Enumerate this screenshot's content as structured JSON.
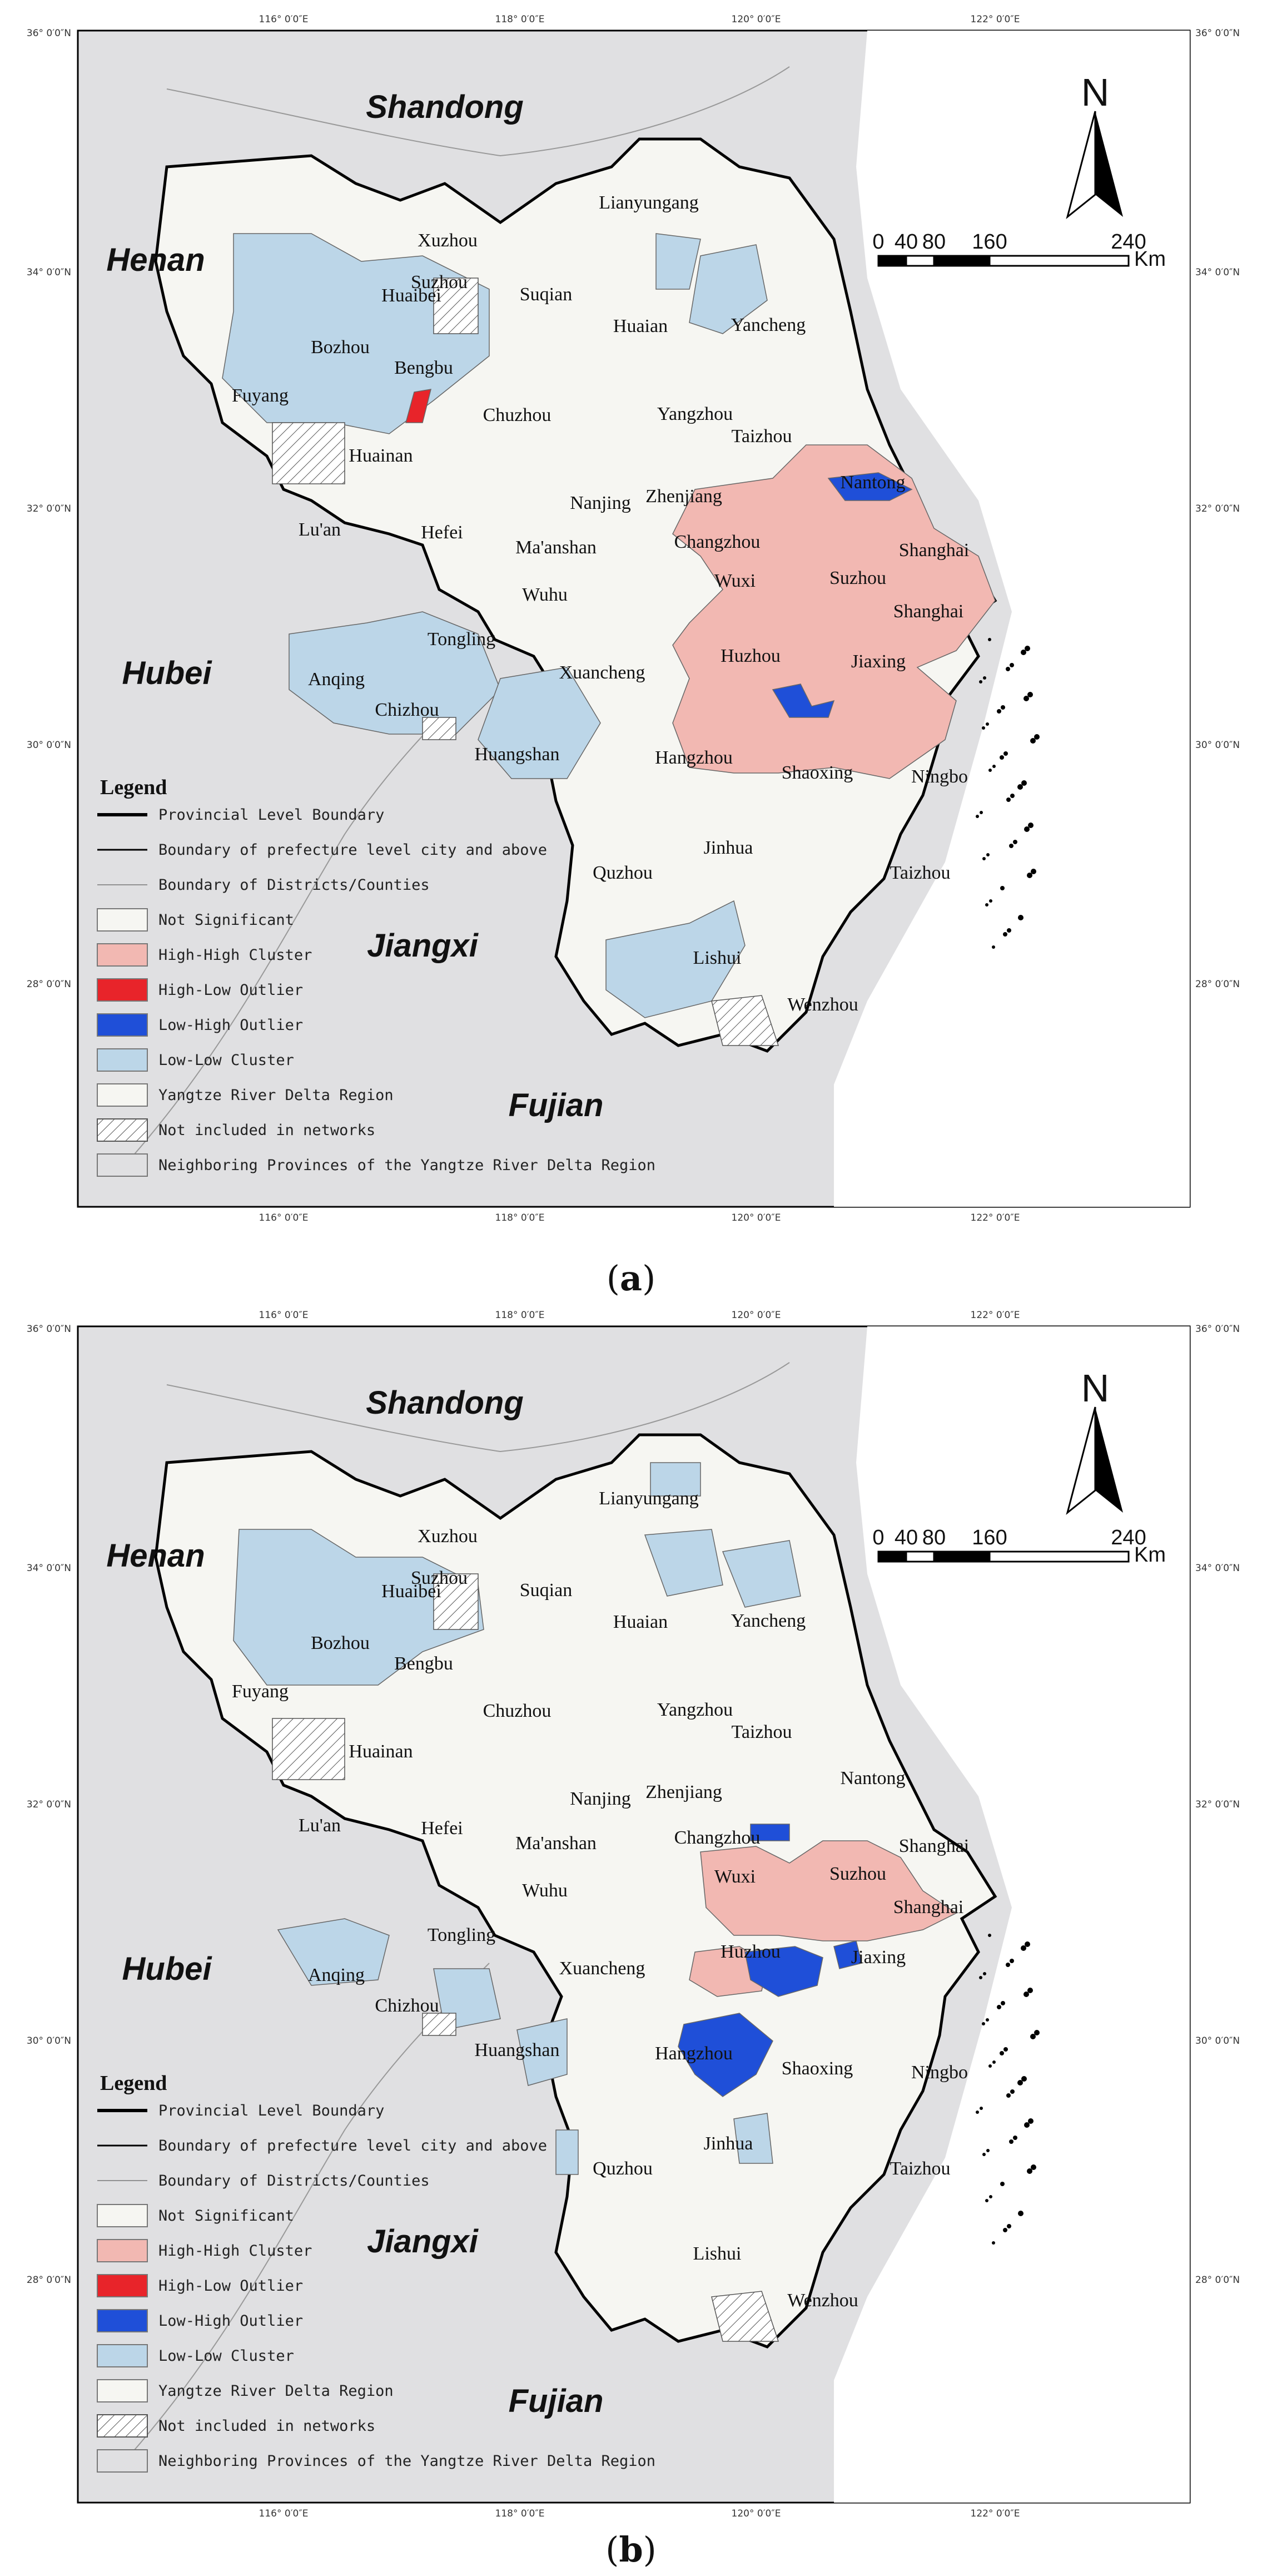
{
  "panels": [
    {
      "id": "a",
      "caption": "a",
      "provinces": [
        "Shandong",
        "Henan",
        "Hubei",
        "Jiangxi",
        "Fujian"
      ],
      "lon_ticks": [
        "116° 0′0″E",
        "118° 0′0″E",
        "120° 0′0″E",
        "122° 0′0″E"
      ],
      "lat_ticks": [
        "36° 0′0″N",
        "34° 0′0″N",
        "32° 0′0″N",
        "30° 0′0″N",
        "28° 0′0″N"
      ],
      "north": "N",
      "scale_labels": [
        "0",
        "40",
        "80",
        "160",
        "240"
      ],
      "scale_unit": "Km",
      "cities": [
        "Xuzhou",
        "Lianyungang",
        "Suzhou",
        "Huaibei",
        "Suqian",
        "Bozhou",
        "Huaian",
        "Yancheng",
        "Bengbu",
        "Fuyang",
        "Chuzhou",
        "Yangzhou",
        "Taizhou",
        "Huainan",
        "Nantong",
        "Zhenjiang",
        "Nanjing",
        "Lu'an",
        "Hefei",
        "Ma'anshan",
        "Changzhou",
        "Shanghai",
        "Wuxi",
        "Suzhou",
        "Shanghai",
        "Wuhu",
        "Tongling",
        "Anqing",
        "Xuancheng",
        "Huzhou",
        "Jiaxing",
        "Chizhou",
        "Huangshan",
        "Hangzhou",
        "Shaoxing",
        "Ningbo",
        "Quzhou",
        "Jinhua",
        "Taizhou",
        "Lishui",
        "Wenzhou"
      ],
      "legend": {
        "title": "Legend",
        "items": [
          "Provincial Level Boundary",
          "Boundary of prefecture level city and above",
          "Boundary of Districts/Counties",
          "Not Significant",
          "High-High Cluster",
          "High-Low Outlier",
          "Low-High Outlier",
          "Low-Low Cluster",
          "Yangtze River Delta Region",
          "Not included in networks",
          "Neighboring Provinces of the Yangtze River Delta Region"
        ]
      }
    },
    {
      "id": "b",
      "caption": "b",
      "provinces": [
        "Shandong",
        "Henan",
        "Hubei",
        "Jiangxi",
        "Fujian"
      ],
      "lon_ticks": [
        "116° 0′0″E",
        "118° 0′0″E",
        "120° 0′0″E",
        "122° 0′0″E"
      ],
      "lat_ticks": [
        "36° 0′0″N",
        "34° 0′0″N",
        "32° 0′0″N",
        "30° 0′0″N",
        "28° 0′0″N"
      ],
      "north": "N",
      "scale_labels": [
        "0",
        "40",
        "80",
        "160",
        "240"
      ],
      "scale_unit": "Km",
      "cities": [
        "Xuzhou",
        "Lianyungang",
        "Suzhou",
        "Huaibei",
        "Suqian",
        "Bozhou",
        "Huaian",
        "Yancheng",
        "Bengbu",
        "Fuyang",
        "Chuzhou",
        "Yangzhou",
        "Taizhou",
        "Huainan",
        "Nantong",
        "Zhenjiang",
        "Nanjing",
        "Lu'an",
        "Hefei",
        "Ma'anshan",
        "Changzhou",
        "Shanghai",
        "Wuxi",
        "Suzhou",
        "Shanghai",
        "Wuhu",
        "Tongling",
        "Anqing",
        "Xuancheng",
        "Huzhou",
        "Jiaxing",
        "Chizhou",
        "Huangshan",
        "Hangzhou",
        "Shaoxing",
        "Ningbo",
        "Quzhou",
        "Jinhua",
        "Taizhou",
        "Lishui",
        "Wenzhou"
      ],
      "legend": {
        "title": "Legend",
        "items": [
          "Provincial Level Boundary",
          "Boundary of prefecture level city and above",
          "Boundary of Districts/Counties",
          "Not Significant",
          "High-High Cluster",
          "High-Low Outlier",
          "Low-High Outlier",
          "Low-Low Cluster",
          "Yangtze River Delta Region",
          "Not included in networks",
          "Neighboring Provinces of the Yangtze River Delta Region"
        ]
      }
    }
  ],
  "colors": {
    "neighbor": "#e0e0e2",
    "not_significant": "#f6f6f2",
    "high_high": "#f2b8b2",
    "high_low": "#e8242a",
    "low_high": "#1f4fd8",
    "low_low": "#bcd6e8"
  }
}
